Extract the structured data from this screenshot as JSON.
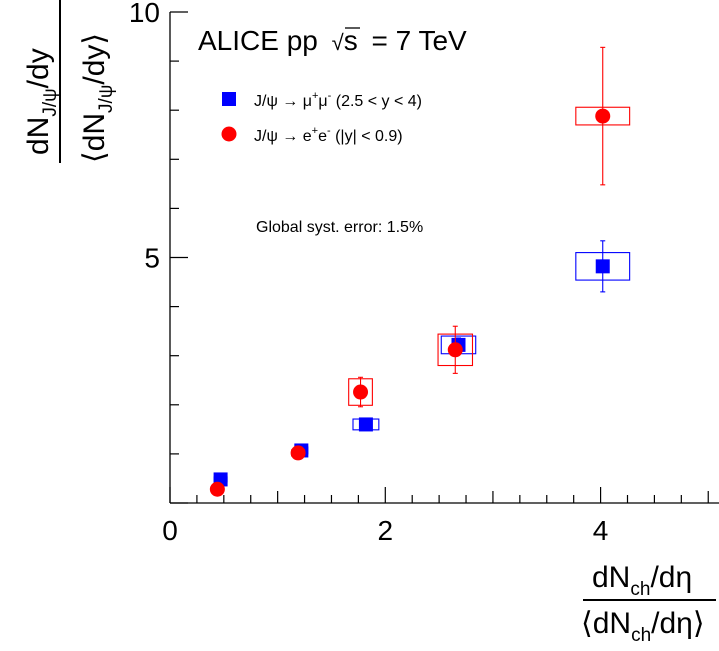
{
  "chart_data": {
    "type": "scatter",
    "title": "ALICE pp √s = 7 TeV",
    "title_parts": {
      "prefix": "ALICE pp",
      "root": "s",
      "suffix": "= 7 TeV"
    },
    "annotation": "Global syst. error: 1.5%",
    "xlim": [
      0,
      5.1
    ],
    "ylim": [
      0,
      10
    ],
    "x_ticks": [
      "0",
      "2",
      "4"
    ],
    "y_ticks": [
      "5",
      "10"
    ],
    "xlabel": {
      "num_main": "dN",
      "num_sub": "ch",
      "num_tail": "/dη",
      "den_open": "⟨dN",
      "den_sub": "ch",
      "den_tail": "/dη⟩"
    },
    "ylabel": {
      "num_main": "dN",
      "num_sub": "J/ψ",
      "num_tail": "/dy",
      "den_open": "⟨dN",
      "den_sub": "J/ψ",
      "den_tail": "/dy⟩"
    },
    "legend_position": "top-left",
    "series": [
      {
        "name": "J/ψ → μ⁺μ⁻ (2.5 < y < 4)",
        "legend_parts": {
          "a": "J/ψ → μ",
          "sup1": "+",
          "b": "μ",
          "sup2": "-",
          "c": " (2.5 < y < 4)"
        },
        "marker": "square",
        "color": "#0000ff",
        "points": [
          {
            "x": 0.47,
            "y": 0.48,
            "stat": 0.04,
            "sys_x": 0.06,
            "sys_y": 0.05
          },
          {
            "x": 1.22,
            "y": 1.07,
            "stat": 0.07,
            "sys_x": 0.06,
            "sys_y": 0.07
          },
          {
            "x": 1.82,
            "y": 1.6,
            "stat": 0.07,
            "sys_x": 0.12,
            "sys_y": 0.11
          },
          {
            "x": 2.68,
            "y": 3.22,
            "stat": 0.14,
            "sys_x": 0.16,
            "sys_y": 0.18
          },
          {
            "x": 4.02,
            "y": 4.82,
            "stat": 0.52,
            "sys_x": 0.25,
            "sys_y": 0.28
          }
        ]
      },
      {
        "name": "J/ψ → e⁺e⁻ (|y| < 0.9)",
        "legend_parts": {
          "a": "J/ψ → e",
          "sup1": "+",
          "b": "e",
          "sup2": "-",
          "c": " (|y| < 0.9)"
        },
        "marker": "circle",
        "color": "#ff0000",
        "points": [
          {
            "x": 0.44,
            "y": 0.28,
            "stat": 0.05,
            "sys_x": 0.06,
            "sys_y": 0.04
          },
          {
            "x": 1.19,
            "y": 1.02,
            "stat": 0.06,
            "sys_x": 0.06,
            "sys_y": 0.06
          },
          {
            "x": 1.77,
            "y": 2.26,
            "stat": 0.3,
            "sys_x": 0.11,
            "sys_y": 0.27
          },
          {
            "x": 2.65,
            "y": 3.12,
            "stat": 0.48,
            "sys_x": 0.16,
            "sys_y": 0.32
          },
          {
            "x": 4.02,
            "y": 7.88,
            "stat": 1.4,
            "sys_x": 0.25,
            "sys_y": 0.18
          }
        ]
      }
    ]
  }
}
